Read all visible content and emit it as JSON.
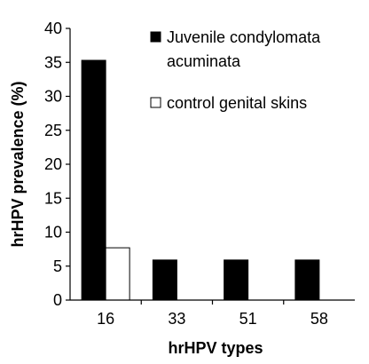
{
  "chart_data": {
    "type": "bar",
    "categories": [
      "16",
      "33",
      "51",
      "58"
    ],
    "series": [
      {
        "name": "Juvenile condylomata acuminata",
        "values": [
          35.3,
          5.9,
          5.9,
          5.9
        ],
        "color": "#000000"
      },
      {
        "name": "control genital skins",
        "values": [
          7.7,
          0,
          0,
          0
        ],
        "color": "#ffffff"
      }
    ],
    "xlabel": "hrHPV types",
    "ylabel": "hrHPV prevalence (%)",
    "ylim": [
      0,
      40
    ],
    "yticks": [
      0,
      5,
      10,
      15,
      20,
      25,
      30,
      35,
      40
    ],
    "grid": false,
    "legend_position": "top-right",
    "legend_labels": [
      "Juvenile condylomata",
      "acuminata",
      "control genital skins"
    ]
  }
}
